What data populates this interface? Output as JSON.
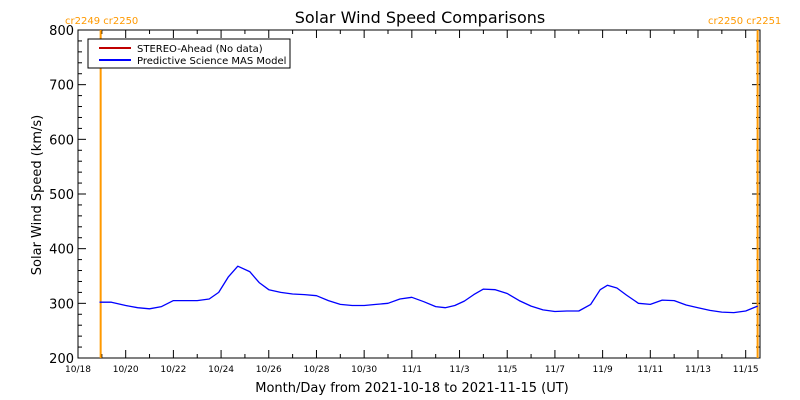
{
  "chart_data": {
    "type": "line",
    "title": "Solar Wind Speed Comparisons",
    "xlabel": "Month/Day from 2021-10-18 to 2021-11-15 (UT)",
    "ylabel": "Solar Wind Speed (km/s)",
    "xlim_days": [
      0,
      28.6
    ],
    "ylim": [
      200,
      800
    ],
    "yticks": [
      200,
      300,
      400,
      500,
      600,
      700,
      800
    ],
    "ytick_labels": [
      "200",
      "300",
      "400",
      "500",
      "600",
      "700",
      "800"
    ],
    "xtick_days": [
      0,
      2,
      4,
      6,
      8,
      10,
      12,
      14,
      16,
      18,
      20,
      22,
      24,
      26,
      28
    ],
    "xtick_labels": [
      "10/18",
      "10/20",
      "10/22",
      "10/24",
      "10/26",
      "10/28",
      "10/30",
      "11/1",
      "11/3",
      "11/5",
      "11/7",
      "11/9",
      "11/11",
      "11/13",
      "11/15"
    ],
    "grid": false,
    "legend_position": "top-left",
    "series": [
      {
        "name": "STEREO-Ahead (No data)",
        "color": "#c00000",
        "x": [],
        "y": []
      },
      {
        "name": "Predictive Science MAS Model",
        "color": "#0000ff",
        "x": [
          0.9,
          1.4,
          2.0,
          2.5,
          3.0,
          3.5,
          4.0,
          4.5,
          5.0,
          5.5,
          5.9,
          6.3,
          6.7,
          7.2,
          7.6,
          8.0,
          8.5,
          9.0,
          9.5,
          10.0,
          10.5,
          11.0,
          11.5,
          12.0,
          12.5,
          13.0,
          13.5,
          14.0,
          14.5,
          15.0,
          15.4,
          15.8,
          16.2,
          16.6,
          17.0,
          17.5,
          18.0,
          18.5,
          19.0,
          19.5,
          20.0,
          20.5,
          21.0,
          21.5,
          21.9,
          22.2,
          22.6,
          23.0,
          23.5,
          24.0,
          24.5,
          25.0,
          25.5,
          26.0,
          26.5,
          27.0,
          27.5,
          28.0,
          28.5
        ],
        "y": [
          302,
          302,
          296,
          292,
          290,
          294,
          305,
          305,
          305,
          308,
          320,
          348,
          368,
          358,
          338,
          325,
          320,
          317,
          316,
          314,
          305,
          298,
          296,
          296,
          298,
          300,
          308,
          311,
          303,
          294,
          292,
          296,
          304,
          316,
          326,
          325,
          318,
          305,
          295,
          288,
          285,
          286,
          286,
          298,
          325,
          333,
          328,
          315,
          300,
          298,
          306,
          305,
          297,
          292,
          287,
          284,
          283,
          286,
          295
        ]
      }
    ],
    "carrington_markers": [
      {
        "day": 0.95,
        "label": "cr2249 cr2250",
        "color": "#ff9900"
      },
      {
        "day": 28.5,
        "label": "cr2250 cr2251",
        "color": "#ff9900"
      }
    ]
  }
}
